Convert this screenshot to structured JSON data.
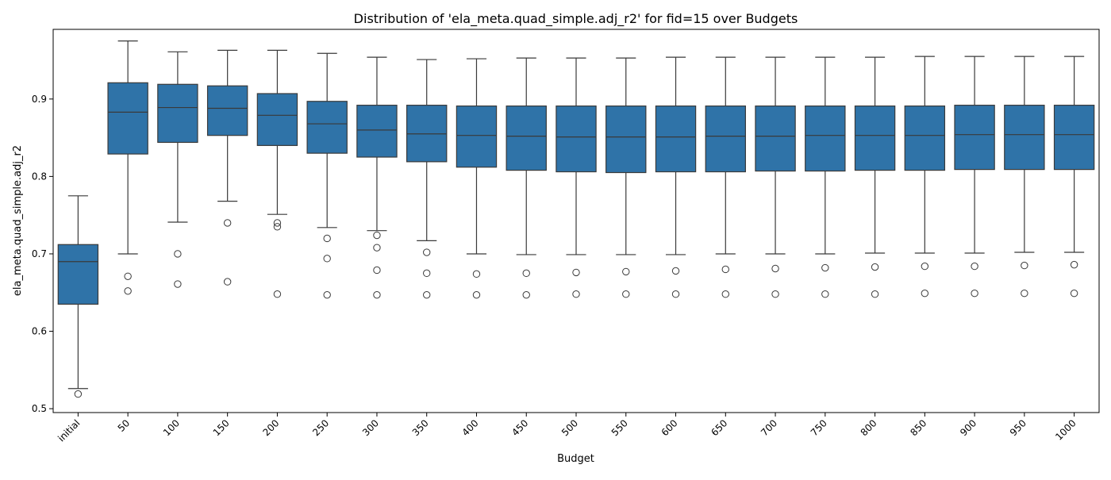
{
  "chart_data": {
    "type": "box",
    "title": "Distribution of 'ela_meta.quad_simple.adj_r2' for fid=15 over Budgets",
    "xlabel": "Budget",
    "ylabel": "ela_meta.quad_simple.adj_r2",
    "ylim": [
      0.495,
      0.99
    ],
    "yticks": [
      0.5,
      0.6,
      0.7,
      0.8,
      0.9
    ],
    "ytick_labels": [
      "0.5",
      "0.6",
      "0.7",
      "0.8",
      "0.9"
    ],
    "grid": false,
    "legend": "none",
    "colors": {
      "box_fill": "#2f73a8",
      "box_edge": "#3a3a3a"
    },
    "categories": [
      "initial",
      "50",
      "100",
      "150",
      "200",
      "250",
      "300",
      "350",
      "400",
      "450",
      "500",
      "550",
      "600",
      "650",
      "700",
      "750",
      "800",
      "850",
      "900",
      "950",
      "1000"
    ],
    "boxes": [
      {
        "whisker_low": 0.526,
        "q1": 0.635,
        "median": 0.69,
        "q3": 0.712,
        "whisker_high": 0.775,
        "outliers": [
          0.519
        ]
      },
      {
        "whisker_low": 0.7,
        "q1": 0.829,
        "median": 0.883,
        "q3": 0.921,
        "whisker_high": 0.975,
        "outliers": [
          0.671,
          0.652
        ]
      },
      {
        "whisker_low": 0.741,
        "q1": 0.844,
        "median": 0.889,
        "q3": 0.919,
        "whisker_high": 0.961,
        "outliers": [
          0.7,
          0.661
        ]
      },
      {
        "whisker_low": 0.768,
        "q1": 0.853,
        "median": 0.888,
        "q3": 0.917,
        "whisker_high": 0.963,
        "outliers": [
          0.74,
          0.664
        ]
      },
      {
        "whisker_low": 0.751,
        "q1": 0.84,
        "median": 0.879,
        "q3": 0.907,
        "whisker_high": 0.963,
        "outliers": [
          0.74,
          0.735,
          0.648
        ]
      },
      {
        "whisker_low": 0.734,
        "q1": 0.83,
        "median": 0.868,
        "q3": 0.897,
        "whisker_high": 0.959,
        "outliers": [
          0.72,
          0.694,
          0.647
        ]
      },
      {
        "whisker_low": 0.73,
        "q1": 0.825,
        "median": 0.86,
        "q3": 0.892,
        "whisker_high": 0.954,
        "outliers": [
          0.724,
          0.708,
          0.679,
          0.647
        ]
      },
      {
        "whisker_low": 0.717,
        "q1": 0.819,
        "median": 0.855,
        "q3": 0.892,
        "whisker_high": 0.951,
        "outliers": [
          0.702,
          0.675,
          0.647
        ]
      },
      {
        "whisker_low": 0.7,
        "q1": 0.812,
        "median": 0.853,
        "q3": 0.891,
        "whisker_high": 0.952,
        "outliers": [
          0.674,
          0.647
        ]
      },
      {
        "whisker_low": 0.699,
        "q1": 0.808,
        "median": 0.852,
        "q3": 0.891,
        "whisker_high": 0.953,
        "outliers": [
          0.675,
          0.647
        ]
      },
      {
        "whisker_low": 0.699,
        "q1": 0.806,
        "median": 0.851,
        "q3": 0.891,
        "whisker_high": 0.953,
        "outliers": [
          0.676,
          0.648
        ]
      },
      {
        "whisker_low": 0.699,
        "q1": 0.805,
        "median": 0.851,
        "q3": 0.891,
        "whisker_high": 0.953,
        "outliers": [
          0.677,
          0.648
        ]
      },
      {
        "whisker_low": 0.699,
        "q1": 0.806,
        "median": 0.851,
        "q3": 0.891,
        "whisker_high": 0.954,
        "outliers": [
          0.678,
          0.648
        ]
      },
      {
        "whisker_low": 0.7,
        "q1": 0.806,
        "median": 0.852,
        "q3": 0.891,
        "whisker_high": 0.954,
        "outliers": [
          0.68,
          0.648
        ]
      },
      {
        "whisker_low": 0.7,
        "q1": 0.807,
        "median": 0.852,
        "q3": 0.891,
        "whisker_high": 0.954,
        "outliers": [
          0.681,
          0.648
        ]
      },
      {
        "whisker_low": 0.7,
        "q1": 0.807,
        "median": 0.853,
        "q3": 0.891,
        "whisker_high": 0.954,
        "outliers": [
          0.682,
          0.648
        ]
      },
      {
        "whisker_low": 0.701,
        "q1": 0.808,
        "median": 0.853,
        "q3": 0.891,
        "whisker_high": 0.954,
        "outliers": [
          0.683,
          0.648
        ]
      },
      {
        "whisker_low": 0.701,
        "q1": 0.808,
        "median": 0.853,
        "q3": 0.891,
        "whisker_high": 0.955,
        "outliers": [
          0.684,
          0.649
        ]
      },
      {
        "whisker_low": 0.701,
        "q1": 0.809,
        "median": 0.854,
        "q3": 0.892,
        "whisker_high": 0.955,
        "outliers": [
          0.684,
          0.649
        ]
      },
      {
        "whisker_low": 0.702,
        "q1": 0.809,
        "median": 0.854,
        "q3": 0.892,
        "whisker_high": 0.955,
        "outliers": [
          0.685,
          0.649
        ]
      },
      {
        "whisker_low": 0.702,
        "q1": 0.809,
        "median": 0.854,
        "q3": 0.892,
        "whisker_high": 0.955,
        "outliers": [
          0.686,
          0.649
        ]
      }
    ]
  }
}
